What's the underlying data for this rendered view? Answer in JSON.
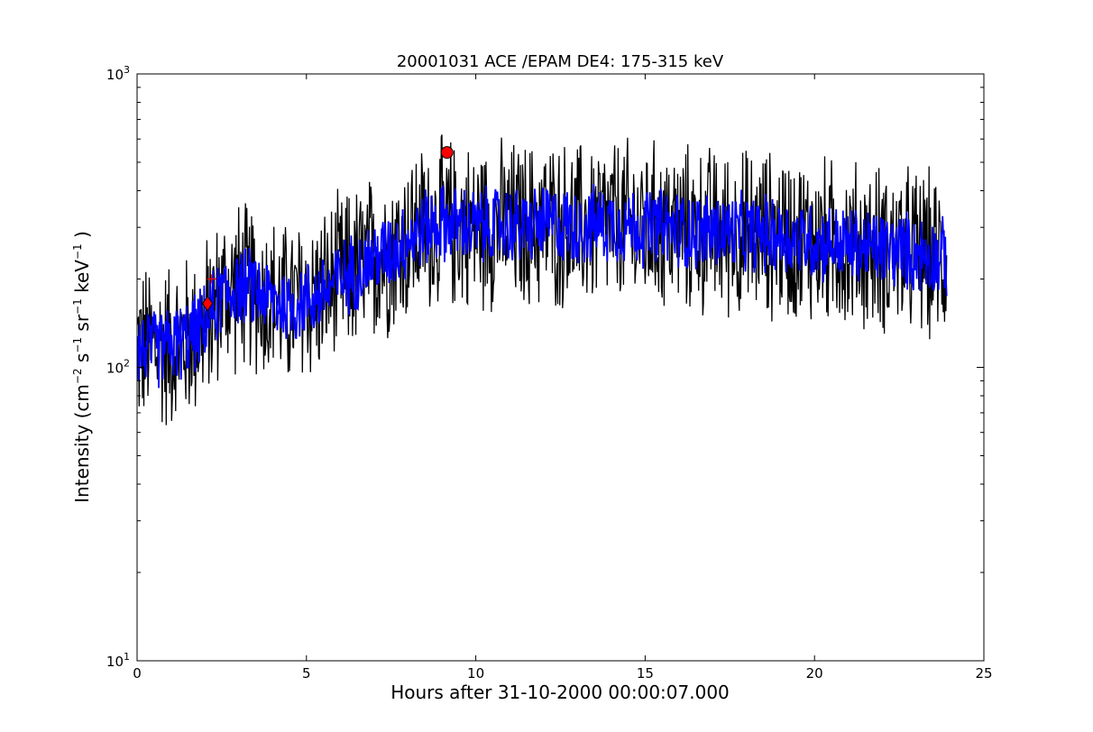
{
  "chart_data": {
    "type": "line",
    "title": "20001031 ACE /EPAM DE4: 175-315 keV",
    "xlabel": "Hours after 31-10-2000 00:00:07.000",
    "ylabel_parts": {
      "prefix": "Intensity (cm",
      "exp1": "−2",
      "s": " s",
      "exp2": "−1",
      "sr": " sr",
      "exp3": "−1",
      "kev": " keV",
      "exp4": "−1",
      "suffix": " )"
    },
    "xlim": [
      0,
      25
    ],
    "ylim": [
      10,
      1000
    ],
    "yscale": "log",
    "x_ticks": [
      0,
      5,
      10,
      15,
      20,
      25
    ],
    "x_tick_labels": [
      "0",
      "5",
      "10",
      "15",
      "20",
      "25"
    ],
    "y_ticks": [
      {
        "base": "10",
        "exp": "1",
        "value": 10
      },
      {
        "base": "10",
        "exp": "2",
        "value": 100
      },
      {
        "base": "10",
        "exp": "3",
        "value": 1000
      }
    ],
    "series": [
      {
        "role": "raw",
        "color": "#000000",
        "x": [
          0,
          0.5,
          1,
          1.5,
          2,
          2.5,
          3,
          3.5,
          4,
          4.5,
          5,
          5.5,
          6,
          6.5,
          7,
          7.5,
          8,
          8.5,
          9,
          9.5,
          10,
          10.5,
          11,
          11.5,
          12,
          12.5,
          13,
          13.5,
          14,
          14.5,
          15,
          15.5,
          16,
          16.5,
          17,
          17.5,
          18,
          18.5,
          19,
          19.5,
          20,
          20.5,
          21,
          21.5,
          22,
          22.5,
          23,
          23.5,
          23.9
        ],
        "y": [
          118,
          115,
          120,
          125,
          140,
          175,
          190,
          185,
          170,
          160,
          170,
          180,
          200,
          215,
          235,
          250,
          275,
          300,
          310,
          305,
          300,
          305,
          305,
          300,
          310,
          305,
          300,
          305,
          310,
          305,
          300,
          300,
          295,
          290,
          290,
          290,
          285,
          285,
          280,
          275,
          270,
          265,
          260,
          255,
          255,
          250,
          245,
          240,
          235
        ]
      },
      {
        "role": "smoothed",
        "color": "#0000ff",
        "x": [
          0,
          0.5,
          1,
          1.5,
          2,
          2.5,
          3,
          3.5,
          4,
          4.5,
          5,
          5.5,
          6,
          6.5,
          7,
          7.5,
          8,
          8.5,
          9,
          9.5,
          10,
          10.5,
          11,
          11.5,
          12,
          12.5,
          13,
          13.5,
          14,
          14.5,
          15,
          15.5,
          16,
          16.5,
          17,
          17.5,
          18,
          18.5,
          19,
          19.5,
          20,
          20.5,
          21,
          21.5,
          22,
          22.5,
          23,
          23.5,
          23.9
        ],
        "y": [
          118,
          115,
          120,
          125,
          140,
          175,
          190,
          185,
          170,
          160,
          170,
          180,
          200,
          215,
          235,
          250,
          275,
          300,
          310,
          305,
          300,
          305,
          305,
          300,
          310,
          305,
          300,
          305,
          310,
          305,
          300,
          300,
          295,
          290,
          290,
          290,
          285,
          285,
          280,
          275,
          270,
          265,
          260,
          255,
          255,
          250,
          245,
          240,
          235
        ]
      }
    ],
    "markers": [
      {
        "shape": "circle",
        "x": 9.15,
        "y": 540,
        "color": "#ff0000"
      },
      {
        "shape": "diamond",
        "x": 2.08,
        "y": 165,
        "color": "#ff0000"
      },
      {
        "shape": "plus",
        "x": 2.2,
        "y": 200,
        "color": "#ff0000"
      }
    ]
  }
}
